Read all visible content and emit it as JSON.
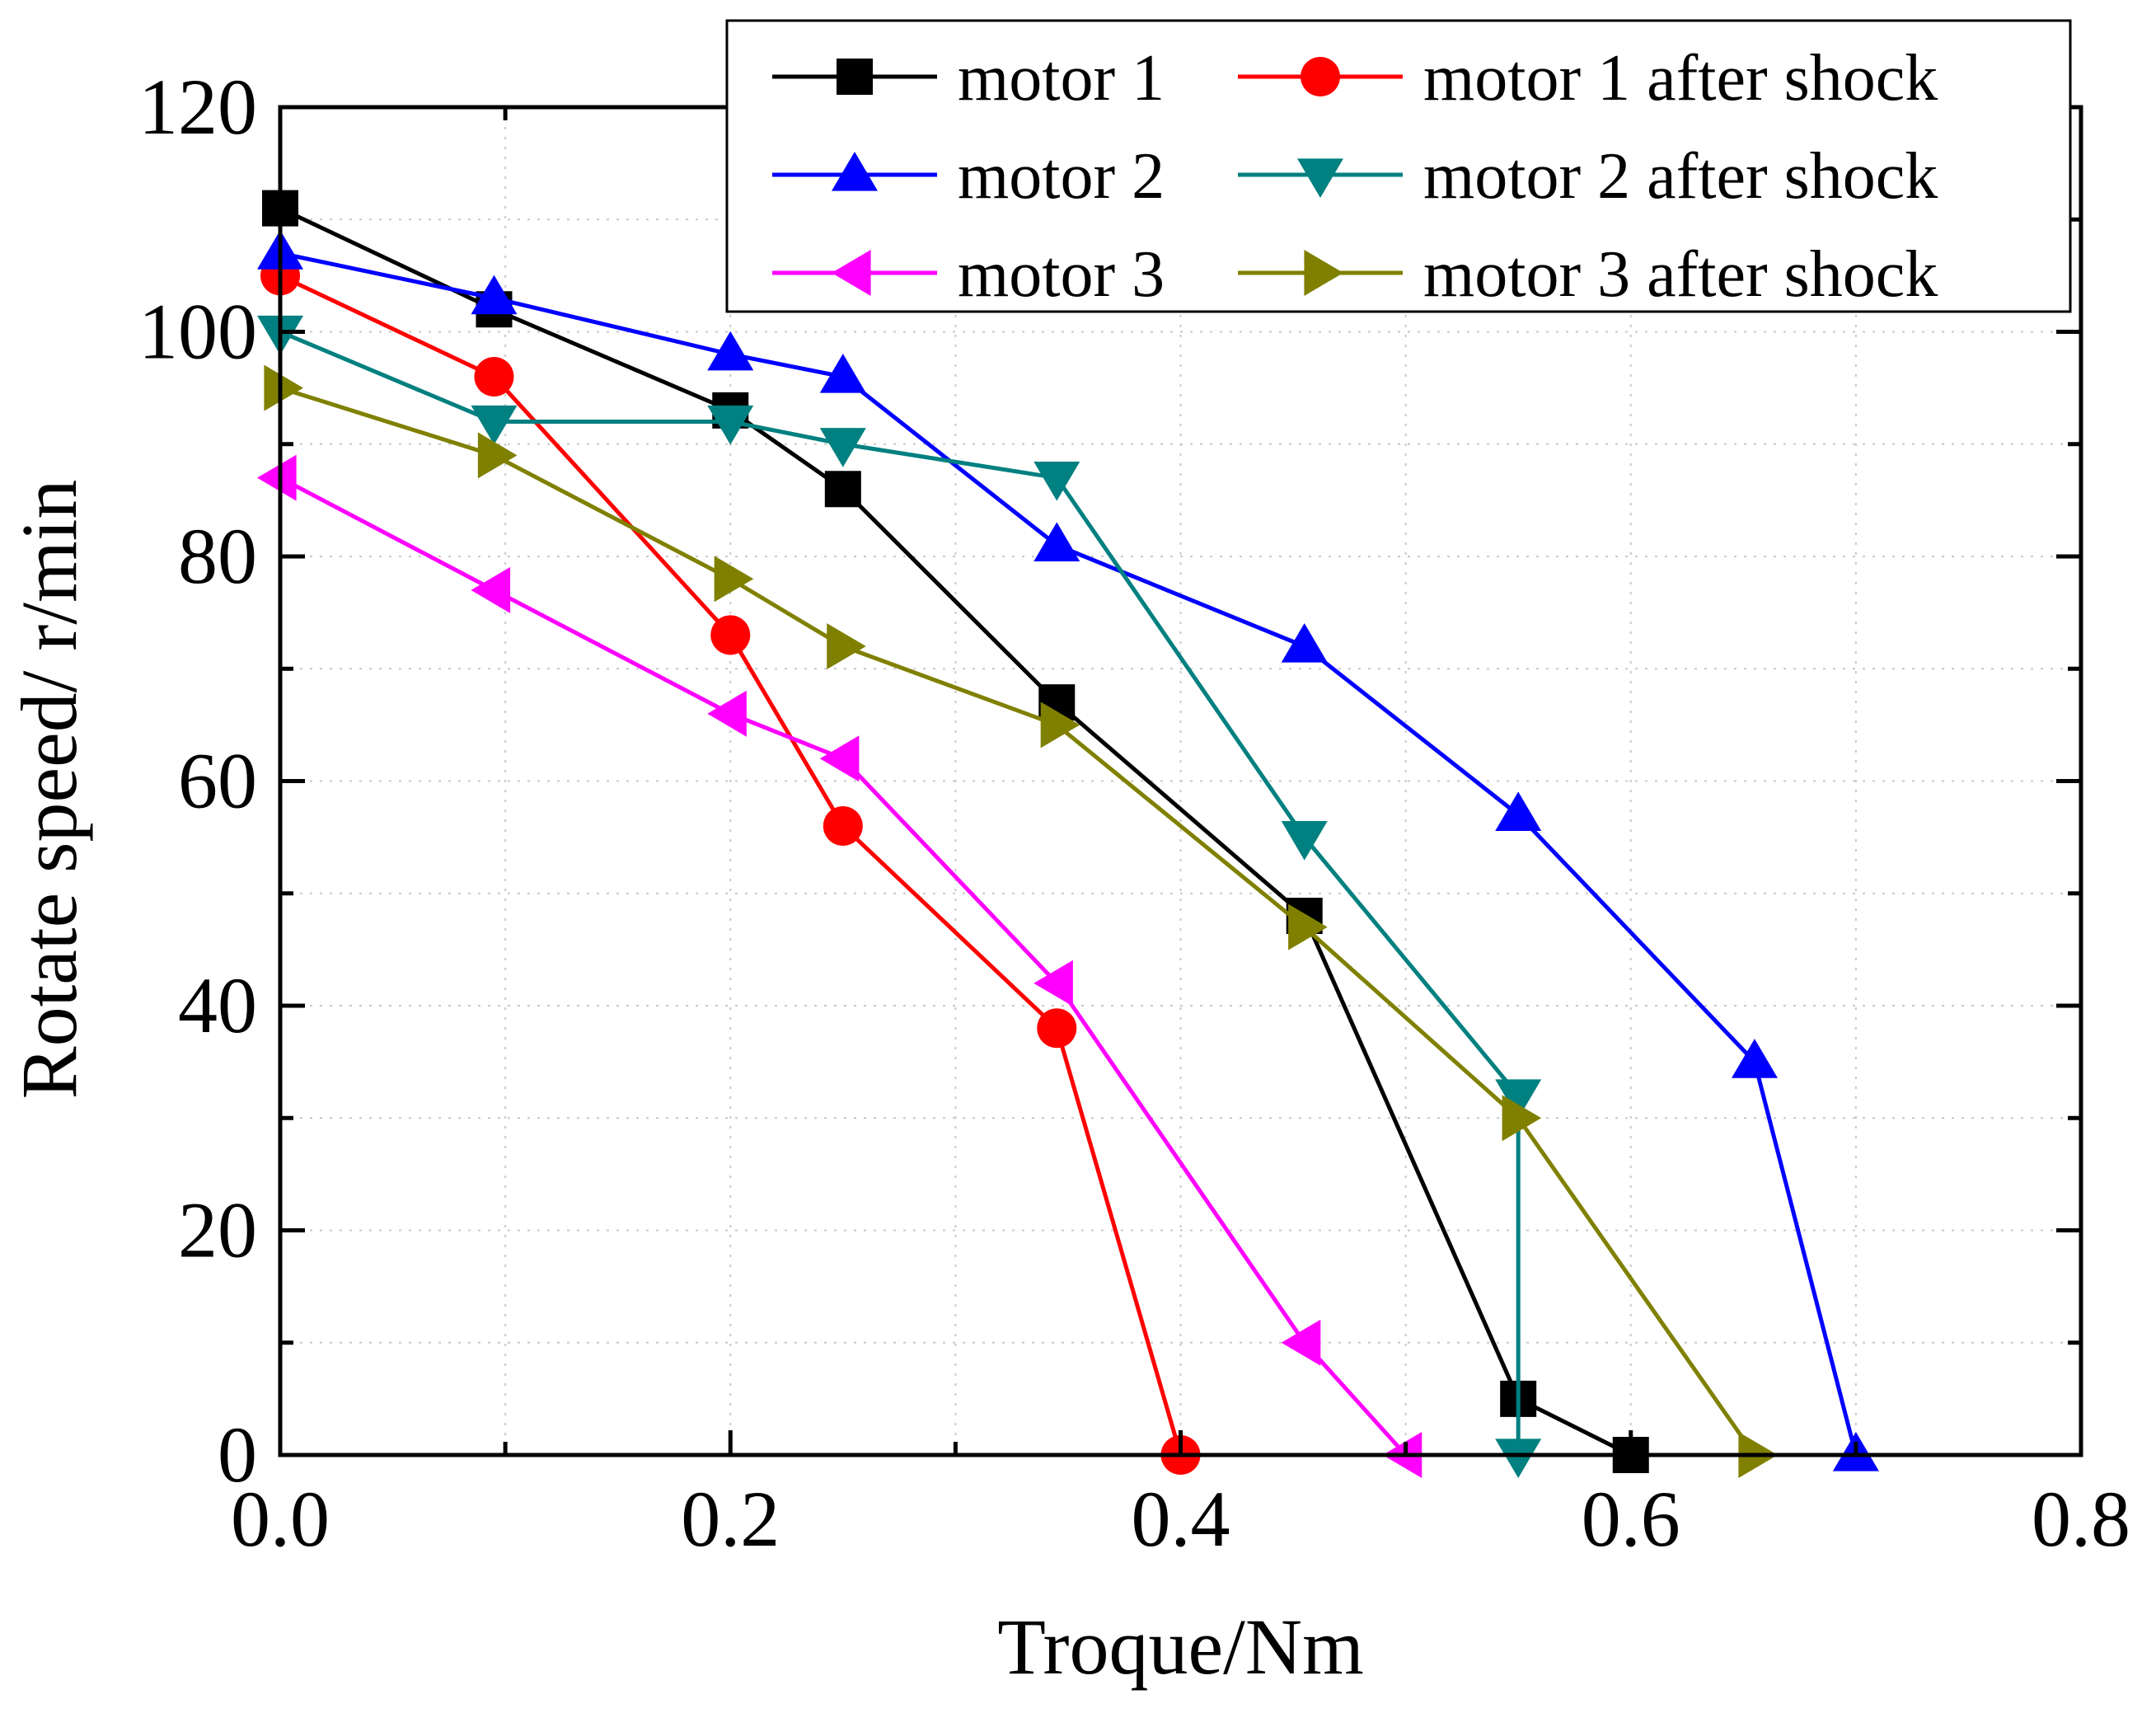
{
  "chart_data": {
    "type": "line",
    "title": "",
    "xlabel": "Troque/Nm",
    "ylabel": "Rotate speed/ r/min",
    "xlim": [
      0,
      0.8
    ],
    "ylim": [
      0,
      120
    ],
    "x_major_ticks": [
      0.0,
      0.2,
      0.4,
      0.6,
      0.8
    ],
    "x_tick_labels": [
      "0.0",
      "0.2",
      "0.4",
      "0.6",
      "0.8"
    ],
    "y_major_ticks": [
      0,
      20,
      40,
      60,
      80,
      100,
      120
    ],
    "y_tick_labels": [
      "0",
      "20",
      "40",
      "60",
      "80",
      "100",
      "120"
    ],
    "x_minor_step": 0.1,
    "y_minor_step": 10,
    "grid": true,
    "legend_position": "top-right",
    "series": [
      {
        "name": "motor 1",
        "color": "#000000",
        "marker": "square",
        "x": [
          0,
          0.095,
          0.2,
          0.25,
          0.345,
          0.455,
          0.55,
          0.6
        ],
        "y": [
          111,
          102,
          93,
          86,
          67,
          48,
          5,
          0
        ]
      },
      {
        "name": "motor 1 after shock",
        "color": "#ff0000",
        "marker": "circle",
        "x": [
          0,
          0.095,
          0.2,
          0.25,
          0.345,
          0.4
        ],
        "y": [
          105,
          96,
          73,
          56,
          38,
          0
        ]
      },
      {
        "name": "motor 2",
        "color": "#0000ff",
        "marker": "triangle-up",
        "x": [
          0,
          0.095,
          0.2,
          0.25,
          0.345,
          0.455,
          0.55,
          0.655,
          0.7
        ],
        "y": [
          107,
          103,
          98,
          96,
          81,
          72,
          57,
          35,
          0
        ]
      },
      {
        "name": "motor 2 after shock",
        "color": "#008080",
        "marker": "triangle-down",
        "x": [
          0,
          0.095,
          0.2,
          0.25,
          0.345,
          0.455,
          0.55,
          0.55
        ],
        "y": [
          100,
          92,
          92,
          90,
          87,
          55,
          32,
          0
        ]
      },
      {
        "name": "motor 3",
        "color": "#ff00ff",
        "marker": "triangle-left",
        "x": [
          0,
          0.095,
          0.2,
          0.25,
          0.345,
          0.455,
          0.5
        ],
        "y": [
          87,
          77,
          66,
          62,
          42,
          10,
          0
        ]
      },
      {
        "name": "motor 3 after shock",
        "color": "#808000",
        "marker": "triangle-right",
        "x": [
          0,
          0.095,
          0.2,
          0.25,
          0.345,
          0.455,
          0.55,
          0.655
        ],
        "y": [
          95,
          89,
          78,
          72,
          65,
          47,
          30,
          0
        ]
      }
    ]
  }
}
